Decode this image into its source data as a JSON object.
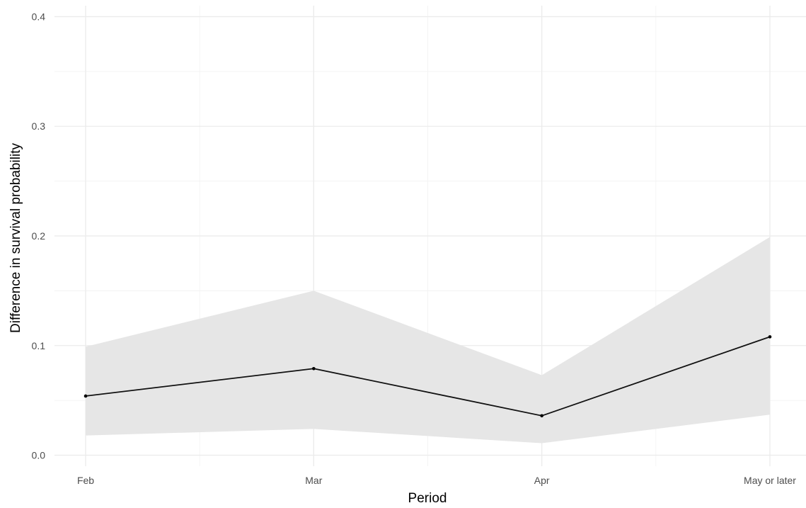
{
  "chart_data": {
    "type": "line",
    "title": "",
    "xlabel": "Period",
    "ylabel": "Difference in survival probability",
    "categories": [
      "Feb",
      "Mar",
      "Apr",
      "May or later"
    ],
    "series": [
      {
        "values": [
          0.054,
          0.079,
          0.036,
          0.108
        ],
        "lower": [
          0.018,
          0.024,
          0.011,
          0.037
        ],
        "upper": [
          0.099,
          0.15,
          0.073,
          0.199
        ],
        "color": "#111111",
        "band_color": "#e6e6e6"
      }
    ],
    "ylim": [
      -0.01,
      0.41
    ],
    "yticks": [
      0.0,
      0.1,
      0.2,
      0.3,
      0.4
    ],
    "ytick_labels": [
      "0.0",
      "0.1",
      "0.2",
      "0.3",
      "0.4"
    ],
    "grid": true,
    "legend": "none"
  }
}
